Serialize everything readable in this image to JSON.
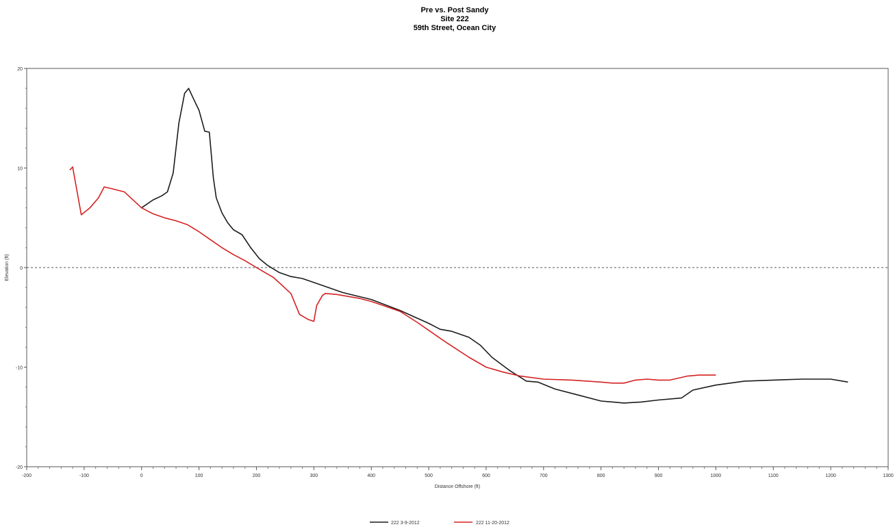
{
  "chart_data": {
    "type": "line",
    "title": [
      "Pre vs. Post Sandy",
      "Site 222",
      "59th Street, Ocean City"
    ],
    "xlabel": "Distance Offshore (ft)",
    "ylabel": "Elevation (ft)",
    "xlim": [
      -200,
      1300
    ],
    "ylim": [
      -20,
      20
    ],
    "xticks": [
      -200,
      -100,
      0,
      100,
      200,
      300,
      400,
      500,
      600,
      700,
      800,
      900,
      1000,
      1100,
      1200,
      1300
    ],
    "yticks": [
      20,
      10,
      0,
      -10,
      -20
    ],
    "grid": false,
    "reference_line": {
      "y": 0,
      "style": "dashed"
    },
    "legend_position": "bottom-center",
    "series": [
      {
        "name": "222 3-9-2012",
        "color": "#1a1a1a",
        "points": [
          [
            0,
            6
          ],
          [
            20,
            6.8
          ],
          [
            35,
            7.2
          ],
          [
            45,
            7.6
          ],
          [
            55,
            9.5
          ],
          [
            65,
            14.5
          ],
          [
            75,
            17.5
          ],
          [
            82,
            18
          ],
          [
            90,
            17
          ],
          [
            100,
            15.8
          ],
          [
            110,
            13.7
          ],
          [
            118,
            13.6
          ],
          [
            125,
            9
          ],
          [
            130,
            7
          ],
          [
            140,
            5.5
          ],
          [
            150,
            4.5
          ],
          [
            160,
            3.8
          ],
          [
            175,
            3.3
          ],
          [
            190,
            2
          ],
          [
            205,
            0.9
          ],
          [
            220,
            0.2
          ],
          [
            240,
            -0.5
          ],
          [
            260,
            -0.9
          ],
          [
            280,
            -1.1
          ],
          [
            300,
            -1.5
          ],
          [
            350,
            -2.5
          ],
          [
            400,
            -3.2
          ],
          [
            450,
            -4.3
          ],
          [
            500,
            -5.6
          ],
          [
            520,
            -6.2
          ],
          [
            540,
            -6.4
          ],
          [
            570,
            -7
          ],
          [
            590,
            -7.8
          ],
          [
            610,
            -9
          ],
          [
            640,
            -10.3
          ],
          [
            670,
            -11.4
          ],
          [
            690,
            -11.5
          ],
          [
            720,
            -12.2
          ],
          [
            760,
            -12.8
          ],
          [
            800,
            -13.4
          ],
          [
            840,
            -13.6
          ],
          [
            870,
            -13.5
          ],
          [
            900,
            -13.3
          ],
          [
            940,
            -13.1
          ],
          [
            960,
            -12.3
          ],
          [
            1000,
            -11.8
          ],
          [
            1050,
            -11.4
          ],
          [
            1100,
            -11.3
          ],
          [
            1150,
            -11.2
          ],
          [
            1200,
            -11.2
          ],
          [
            1230,
            -11.5
          ]
        ]
      },
      {
        "name": "222 11-20-2012",
        "color": "#d42020",
        "points": [
          [
            -125,
            9.8
          ],
          [
            -120,
            10.1
          ],
          [
            -105,
            5.3
          ],
          [
            -90,
            6
          ],
          [
            -75,
            7
          ],
          [
            -65,
            8.1
          ],
          [
            -50,
            7.9
          ],
          [
            -30,
            7.6
          ],
          [
            -15,
            6.8
          ],
          [
            0,
            6
          ],
          [
            20,
            5.4
          ],
          [
            40,
            5
          ],
          [
            60,
            4.7
          ],
          [
            80,
            4.3
          ],
          [
            100,
            3.6
          ],
          [
            120,
            2.8
          ],
          [
            140,
            2
          ],
          [
            160,
            1.3
          ],
          [
            170,
            1
          ],
          [
            180,
            0.7
          ],
          [
            200,
            0
          ],
          [
            230,
            -1
          ],
          [
            260,
            -2.6
          ],
          [
            275,
            -4.7
          ],
          [
            290,
            -5.2
          ],
          [
            300,
            -5.4
          ],
          [
            305,
            -3.8
          ],
          [
            315,
            -2.8
          ],
          [
            320,
            -2.6
          ],
          [
            340,
            -2.7
          ],
          [
            360,
            -2.9
          ],
          [
            380,
            -3.1
          ],
          [
            400,
            -3.4
          ],
          [
            420,
            -3.8
          ],
          [
            450,
            -4.4
          ],
          [
            480,
            -5.5
          ],
          [
            500,
            -6.3
          ],
          [
            530,
            -7.5
          ],
          [
            570,
            -9
          ],
          [
            600,
            -10
          ],
          [
            630,
            -10.5
          ],
          [
            660,
            -10.9
          ],
          [
            700,
            -11.2
          ],
          [
            750,
            -11.3
          ],
          [
            800,
            -11.5
          ],
          [
            820,
            -11.6
          ],
          [
            840,
            -11.6
          ],
          [
            860,
            -11.3
          ],
          [
            880,
            -11.2
          ],
          [
            900,
            -11.3
          ],
          [
            920,
            -11.3
          ],
          [
            950,
            -10.9
          ],
          [
            970,
            -10.8
          ],
          [
            1000,
            -10.8
          ]
        ]
      }
    ]
  }
}
